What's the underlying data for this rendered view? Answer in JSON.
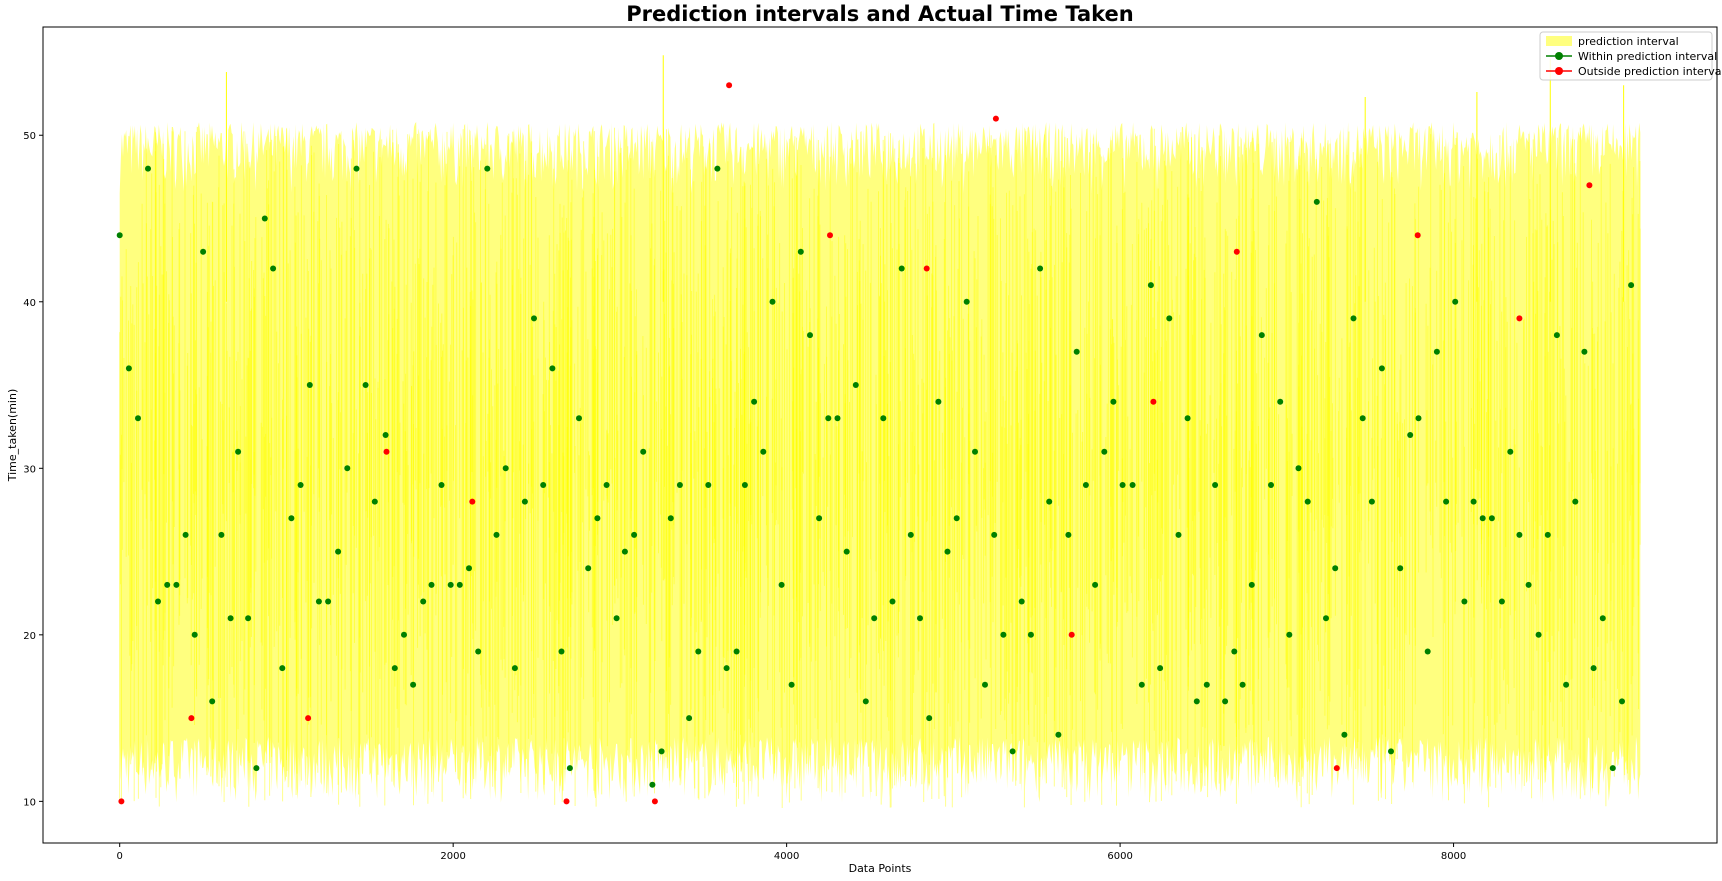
{
  "chart_data": {
    "type": "scatter",
    "title": "Prediction intervals and Actual Time Taken",
    "xlabel": "Data Points",
    "ylabel": "Time_taken(min)",
    "xlim": [
      -460,
      9580
    ],
    "ylim": [
      7.5,
      56.5
    ],
    "x_ticks": [
      0,
      2000,
      4000,
      6000,
      8000
    ],
    "y_ticks": [
      10,
      20,
      30,
      40,
      50
    ],
    "grid": false,
    "legend_position": "top-right",
    "legend": [
      {
        "label": "prediction interval",
        "kind": "fill",
        "color": "#ffff00"
      },
      {
        "label": "Within prediction interval",
        "kind": "marker",
        "color": "#008000"
      },
      {
        "label": "Outside prediction interval",
        "kind": "marker",
        "color": "#ff0000"
      }
    ],
    "interval": {
      "x_range": [
        0,
        9120
      ],
      "lower_min": 9.6,
      "lower_max": 30,
      "upper_min": 30,
      "upper_max": 55,
      "color": "#ffff00",
      "spikes": [
        {
          "x": 3260,
          "y": 54.8
        },
        {
          "x": 8580,
          "y": 54.6
        },
        {
          "x": 640,
          "y": 53.8
        },
        {
          "x": 9020,
          "y": 53.0
        },
        {
          "x": 7470,
          "y": 52.3
        },
        {
          "x": 8140,
          "y": 52.6
        }
      ]
    },
    "series": [
      {
        "name": "Within prediction interval",
        "color": "#008000",
        "points": [
          [
            0,
            44
          ],
          [
            55,
            36
          ],
          [
            110,
            33
          ],
          [
            170,
            48
          ],
          [
            230,
            22
          ],
          [
            285,
            23
          ],
          [
            340,
            23
          ],
          [
            395,
            26
          ],
          [
            450,
            20
          ],
          [
            500,
            43
          ],
          [
            555,
            16
          ],
          [
            610,
            26
          ],
          [
            665,
            21
          ],
          [
            710,
            31
          ],
          [
            770,
            21
          ],
          [
            820,
            12
          ],
          [
            870,
            45
          ],
          [
            920,
            42
          ],
          [
            975,
            18
          ],
          [
            1030,
            27
          ],
          [
            1085,
            29
          ],
          [
            1140,
            35
          ],
          [
            1195,
            22
          ],
          [
            1250,
            22
          ],
          [
            1310,
            25
          ],
          [
            1365,
            30
          ],
          [
            1420,
            48
          ],
          [
            1475,
            35
          ],
          [
            1530,
            28
          ],
          [
            1595,
            32
          ],
          [
            1650,
            18
          ],
          [
            1705,
            20
          ],
          [
            1760,
            17
          ],
          [
            1820,
            22
          ],
          [
            1870,
            23
          ],
          [
            1930,
            29
          ],
          [
            1985,
            23
          ],
          [
            2040,
            23
          ],
          [
            2095,
            24
          ],
          [
            2150,
            19
          ],
          [
            2205,
            48
          ],
          [
            2260,
            26
          ],
          [
            2315,
            30
          ],
          [
            2370,
            18
          ],
          [
            2430,
            28
          ],
          [
            2485,
            39
          ],
          [
            2540,
            29
          ],
          [
            2595,
            36
          ],
          [
            2650,
            19
          ],
          [
            2700,
            12
          ],
          [
            2755,
            33
          ],
          [
            2810,
            24
          ],
          [
            2865,
            27
          ],
          [
            2920,
            29
          ],
          [
            2980,
            21
          ],
          [
            3030,
            25
          ],
          [
            3085,
            26
          ],
          [
            3140,
            31
          ],
          [
            3195,
            11
          ],
          [
            3250,
            13
          ],
          [
            3305,
            27
          ],
          [
            3360,
            29
          ],
          [
            3415,
            15
          ],
          [
            3470,
            19
          ],
          [
            3530,
            29
          ],
          [
            3585,
            48
          ],
          [
            3640,
            18
          ],
          [
            3700,
            19
          ],
          [
            3750,
            29
          ],
          [
            3805,
            34
          ],
          [
            3860,
            31
          ],
          [
            3915,
            40
          ],
          [
            3970,
            23
          ],
          [
            4030,
            17
          ],
          [
            4085,
            43
          ],
          [
            4140,
            38
          ],
          [
            4195,
            27
          ],
          [
            4250,
            33
          ],
          [
            4305,
            33
          ],
          [
            4360,
            25
          ],
          [
            4415,
            35
          ],
          [
            4475,
            16
          ],
          [
            4525,
            21
          ],
          [
            4580,
            33
          ],
          [
            4635,
            22
          ],
          [
            4690,
            42
          ],
          [
            4745,
            26
          ],
          [
            4800,
            21
          ],
          [
            4855,
            15
          ],
          [
            4910,
            34
          ],
          [
            4965,
            25
          ],
          [
            5020,
            27
          ],
          [
            5080,
            40
          ],
          [
            5130,
            31
          ],
          [
            5190,
            17
          ],
          [
            5245,
            26
          ],
          [
            5300,
            20
          ],
          [
            5355,
            13
          ],
          [
            5410,
            22
          ],
          [
            5465,
            20
          ],
          [
            5520,
            42
          ],
          [
            5575,
            28
          ],
          [
            5630,
            14
          ],
          [
            5690,
            26
          ],
          [
            5740,
            37
          ],
          [
            5795,
            29
          ],
          [
            5850,
            23
          ],
          [
            5905,
            31
          ],
          [
            5960,
            34
          ],
          [
            6015,
            29
          ],
          [
            6075,
            29
          ],
          [
            6130,
            17
          ],
          [
            6185,
            41
          ],
          [
            6240,
            18
          ],
          [
            6295,
            39
          ],
          [
            6350,
            26
          ],
          [
            6405,
            33
          ],
          [
            6460,
            16
          ],
          [
            6520,
            17
          ],
          [
            6570,
            29
          ],
          [
            6630,
            16
          ],
          [
            6685,
            19
          ],
          [
            6735,
            17
          ],
          [
            6790,
            23
          ],
          [
            6850,
            38
          ],
          [
            6905,
            29
          ],
          [
            6960,
            34
          ],
          [
            7015,
            20
          ],
          [
            7070,
            30
          ],
          [
            7125,
            28
          ],
          [
            7180,
            46
          ],
          [
            7235,
            21
          ],
          [
            7290,
            24
          ],
          [
            7345,
            14
          ],
          [
            7400,
            39
          ],
          [
            7455,
            33
          ],
          [
            7510,
            28
          ],
          [
            7570,
            36
          ],
          [
            7625,
            13
          ],
          [
            7680,
            24
          ],
          [
            7740,
            32
          ],
          [
            7790,
            33
          ],
          [
            7845,
            19
          ],
          [
            7900,
            37
          ],
          [
            7955,
            28
          ],
          [
            8010,
            40
          ],
          [
            8065,
            22
          ],
          [
            8120,
            28
          ],
          [
            8175,
            27
          ],
          [
            8230,
            27
          ],
          [
            8290,
            22
          ],
          [
            8340,
            31
          ],
          [
            8395,
            26
          ],
          [
            8450,
            23
          ],
          [
            8510,
            20
          ],
          [
            8565,
            26
          ],
          [
            8620,
            38
          ],
          [
            8675,
            17
          ],
          [
            8730,
            28
          ],
          [
            8785,
            37
          ],
          [
            8840,
            18
          ],
          [
            8895,
            21
          ],
          [
            8955,
            12
          ],
          [
            9010,
            16
          ],
          [
            9065,
            41
          ]
        ]
      },
      {
        "name": "Outside prediction interval",
        "color": "#ff0000",
        "points": [
          [
            10,
            10
          ],
          [
            430,
            15
          ],
          [
            1130,
            15
          ],
          [
            1600,
            31
          ],
          [
            2115,
            28
          ],
          [
            2680,
            10
          ],
          [
            3210,
            10
          ],
          [
            3655,
            53
          ],
          [
            4260,
            44
          ],
          [
            4840,
            42
          ],
          [
            5255,
            51
          ],
          [
            5710,
            20
          ],
          [
            6200,
            34
          ],
          [
            6700,
            43
          ],
          [
            7300,
            12
          ],
          [
            7785,
            44
          ],
          [
            8395,
            39
          ],
          [
            8815,
            47
          ]
        ]
      }
    ]
  }
}
